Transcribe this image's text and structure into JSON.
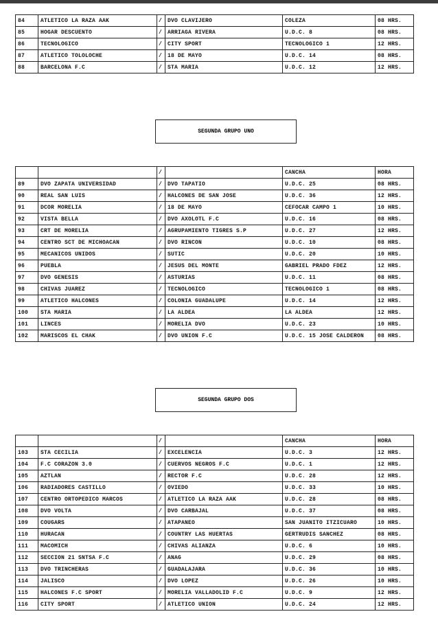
{
  "separator": "/",
  "header": {
    "cancha": "CANCHA",
    "hora": "HORA"
  },
  "sections": [
    {
      "title": "",
      "show_header": false,
      "rows": [
        [
          "84",
          "ATLETICO LA RAZA AAK",
          "DVO CLAVIJERO",
          "COLEZA",
          "08 HRS."
        ],
        [
          "85",
          "HOGAR DESCUENTO",
          "ARRIAGA RIVERA",
          "U.D.C. 8",
          "08 HRS."
        ],
        [
          "86",
          "TECNOLOGICO",
          "CITY SPORT",
          "TECNOLOGICO 1",
          "12 HRS."
        ],
        [
          "87",
          "ATLETICO TOLOLOCHE",
          "18 DE MAYO",
          "U.D.C. 14",
          "08 HRS."
        ],
        [
          "88",
          "BARCELONA F.C",
          "STA MARIA",
          "U.D.C. 12",
          "12 HRS."
        ]
      ]
    },
    {
      "title": "SEGUNDA GRUPO UNO",
      "show_header": true,
      "rows": [
        [
          "89",
          "DVO ZAPATA UNIVERSIDAD",
          "DVO TAPATIO",
          "U.D.C. 25",
          "08 HRS."
        ],
        [
          "90",
          "REAL SAN LUIS",
          "HALCONES DE SAN JOSE",
          "U.D.C. 36",
          "12 HRS."
        ],
        [
          "91",
          "DCOR MORELIA",
          "18 DE MAYO",
          "CEFOCAR CAMPO 1",
          "10 HRS."
        ],
        [
          "92",
          "VISTA BELLA",
          "DVO AXOLOTL F.C",
          "U.D.C. 16",
          "08 HRS."
        ],
        [
          "93",
          "CRT DE MORELIA",
          "AGRUPAMIENTO TIGRES S.P",
          "U.D.C. 27",
          "12 HRS."
        ],
        [
          "94",
          "CENTRO SCT DE MICHOACAN",
          "DVO RINCON",
          "U.D.C. 10",
          "08 HRS."
        ],
        [
          "95",
          "MECANICOS UNIDOS",
          "SUTIC",
          "U.D.C. 20",
          "10 HRS."
        ],
        [
          "96",
          "PUEBLA",
          "JESUS DEL MONTE",
          "GABRIEL PRADO FDEZ",
          "12 HRS."
        ],
        [
          "97",
          "DVO GENESIS",
          "ASTURIAS",
          "U.D.C. 11",
          "08 HRS."
        ],
        [
          "98",
          "CHIVAS JUAREZ",
          "TECNOLOGICO",
          "TECNOLOGICO 1",
          "08 HRS."
        ],
        [
          "99",
          "ATLETICO HALCONES",
          "COLONIA GUADALUPE",
          "U.D.C. 14",
          "12 HRS."
        ],
        [
          "100",
          "STA MARIA",
          "LA ALDEA",
          "LA ALDEA",
          "12 HRS."
        ],
        [
          "101",
          "LINCES",
          "MORELIA DVO",
          "U.D.C. 23",
          "10 HRS."
        ],
        [
          "102",
          "MARISCOS EL CHAK",
          "DVO UNION F.C",
          "U.D.C. 15 JOSE CALDERON",
          "08 HRS."
        ]
      ]
    },
    {
      "title": "SEGUNDA GRUPO DOS",
      "show_header": true,
      "rows": [
        [
          "103",
          "STA CECILIA",
          "EXCELENCIA",
          "U.D.C. 3",
          "12 HRS."
        ],
        [
          "104",
          "F.C CORAZON 3.0",
          "CUERVOS NEGROS F.C",
          "U.D.C. 1",
          "12 HRS."
        ],
        [
          "105",
          "AZTLAN",
          "RECTOR F.C",
          "U.D.C. 28",
          "12 HRS."
        ],
        [
          "106",
          "RADIADORES CASTILLO",
          "OVIEDO",
          "U.D.C. 33",
          "10 HRS."
        ],
        [
          "107",
          "CENTRO ORTOPEDICO MARCOS",
          "ATLETICO LA RAZA AAK",
          "U.D.C. 28",
          "08 HRS."
        ],
        [
          "108",
          "DVO VOLTA",
          "DVO CARBAJAL",
          "U.D.C. 37",
          "08 HRS."
        ],
        [
          "109",
          "COUGARS",
          "ATAPANEO",
          "SAN JUANITO ITZICUARO",
          "10 HRS."
        ],
        [
          "110",
          "HURACAN",
          "COUNTRY LAS HUERTAS",
          "GERTRUDIS SANCHEZ",
          "08 HRS."
        ],
        [
          "111",
          "MACOMICH",
          "CHIVAS ALIANZA",
          "U.D.C. 6",
          "10 HRS."
        ],
        [
          "112",
          "SECCION 21 SNTSA F.C",
          "ANAG",
          "U.D.C. 29",
          "08 HRS."
        ],
        [
          "113",
          "DVO TRINCHERAS",
          "GUADALAJARA",
          "U.D.C. 36",
          "10 HRS."
        ],
        [
          "114",
          "JALISCO",
          "DVO LOPEZ",
          "U.D.C. 26",
          "10 HRS."
        ],
        [
          "115",
          "HALCONES F.C SPORT",
          "MORELIA VALLADOLID F.C",
          "U.D.C. 9",
          "12 HRS."
        ],
        [
          "116",
          "CITY SPORT",
          "ATLETICO UNION",
          "U.D.C. 24",
          "12 HRS."
        ]
      ]
    }
  ]
}
